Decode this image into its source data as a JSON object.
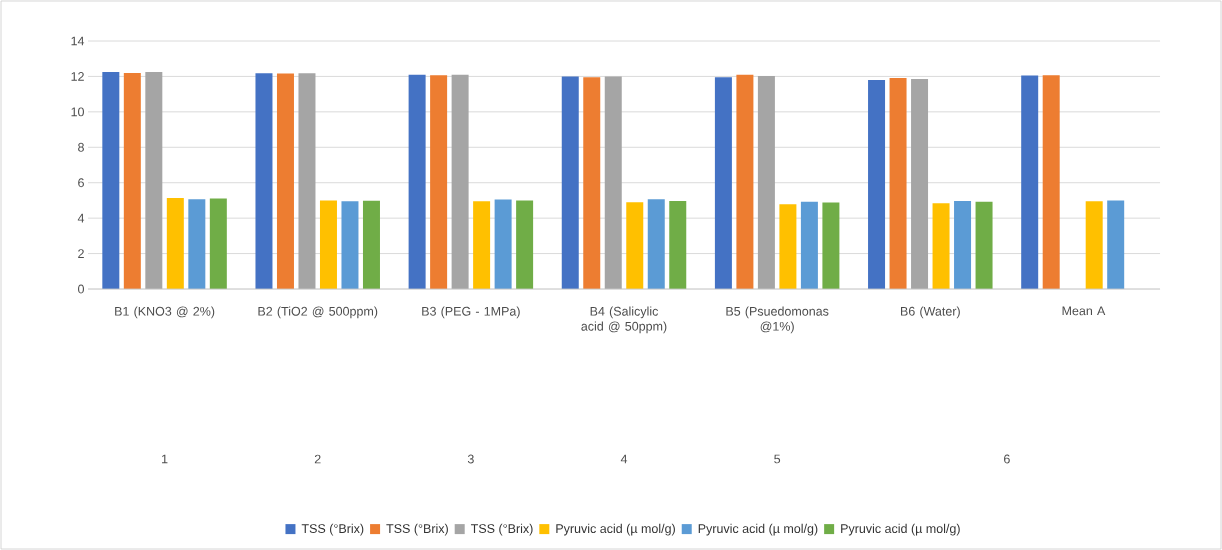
{
  "chart_data": {
    "type": "bar",
    "categories": [
      "B1 (KNO3 @ 2%)",
      "B2 (TiO2 @ 500ppm)",
      "B3 (PEG - 1MPa)",
      "B4 (Salicylic acid @ 50ppm)",
      "B5 (Psuedomonas @1%)",
      "B6 (Water)",
      "Mean A"
    ],
    "series": [
      {
        "name": "TSS (°Brix)",
        "color": "#4472c4",
        "values": [
          12.25,
          12.18,
          12.09,
          12.0,
          11.95,
          11.8,
          12.05
        ]
      },
      {
        "name": "TSS (°Brix)",
        "color": "#ed7d31",
        "values": [
          12.2,
          12.16,
          12.07,
          11.95,
          12.09,
          11.91,
          12.07
        ]
      },
      {
        "name": "TSS (°Brix)",
        "color": "#a5a5a5",
        "values": [
          12.25,
          12.18,
          12.09,
          12.0,
          12.02,
          11.86,
          null
        ]
      },
      {
        "name": "Pyruvic acid (µ mol/g)",
        "color": "#ffc000",
        "values": [
          5.14,
          5.0,
          4.95,
          4.9,
          4.79,
          4.84,
          4.95
        ]
      },
      {
        "name": "Pyruvic acid (µ mol/g)",
        "color": "#5b9bd5",
        "values": [
          5.07,
          4.95,
          5.05,
          5.06,
          4.93,
          4.97,
          5.0
        ]
      },
      {
        "name": "Pyruvic acid (µ mol/g)",
        "color": "#70ad47",
        "values": [
          5.11,
          4.98,
          5.0,
          4.97,
          4.88,
          4.93,
          null
        ]
      }
    ],
    "annotations": [
      "1",
      "2",
      "3",
      "4",
      "5",
      "6"
    ],
    "ylim": [
      0,
      14
    ],
    "yticks": [
      0,
      2,
      4,
      6,
      8,
      10,
      12,
      14
    ],
    "grid": "y",
    "legend": "bottom"
  }
}
